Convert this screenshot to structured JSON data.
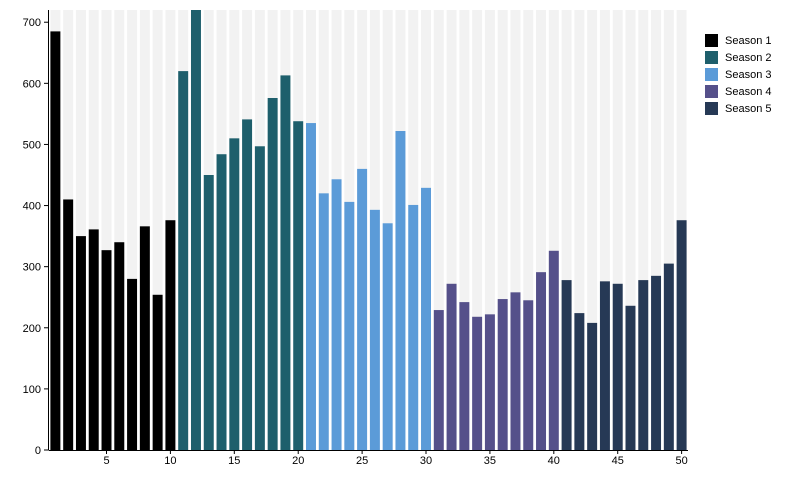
{
  "chart_data": {
    "type": "bar",
    "title": "",
    "xlabel": "",
    "ylabel": "",
    "ylim": [
      0,
      720
    ],
    "grid": false,
    "legend_position": "right",
    "y_ticks": [
      0,
      100,
      200,
      300,
      400,
      500,
      600,
      700
    ],
    "x_ticks": [
      5,
      10,
      15,
      20,
      25,
      30,
      35,
      40,
      45,
      50
    ],
    "x": [
      1,
      2,
      3,
      4,
      5,
      6,
      7,
      8,
      9,
      10,
      11,
      12,
      13,
      14,
      15,
      16,
      17,
      18,
      19,
      20,
      21,
      22,
      23,
      24,
      25,
      26,
      27,
      28,
      29,
      30,
      31,
      32,
      33,
      34,
      35,
      36,
      37,
      38,
      39,
      40,
      41,
      42,
      43,
      44,
      45,
      46,
      47,
      48,
      49,
      50
    ],
    "values": [
      685,
      410,
      350,
      361,
      327,
      340,
      280,
      366,
      254,
      376,
      620,
      720,
      450,
      484,
      510,
      541,
      497,
      576,
      613,
      538,
      535,
      420,
      443,
      406,
      460,
      393,
      371,
      522,
      401,
      429,
      229,
      272,
      242,
      218,
      222,
      247,
      258,
      245,
      291,
      326,
      278,
      224,
      208,
      276,
      272,
      236,
      278,
      285,
      305,
      376
    ],
    "series": [
      {
        "name": "Season 1",
        "color": "#000000",
        "range": [
          1,
          10
        ]
      },
      {
        "name": "Season 2",
        "color": "#1e5f6c",
        "range": [
          11,
          20
        ]
      },
      {
        "name": "Season 3",
        "color": "#5b9bd8",
        "range": [
          21,
          30
        ]
      },
      {
        "name": "Season 4",
        "color": "#55508a",
        "range": [
          31,
          40
        ]
      },
      {
        "name": "Season 5",
        "color": "#263955",
        "range": [
          41,
          50
        ]
      }
    ]
  }
}
